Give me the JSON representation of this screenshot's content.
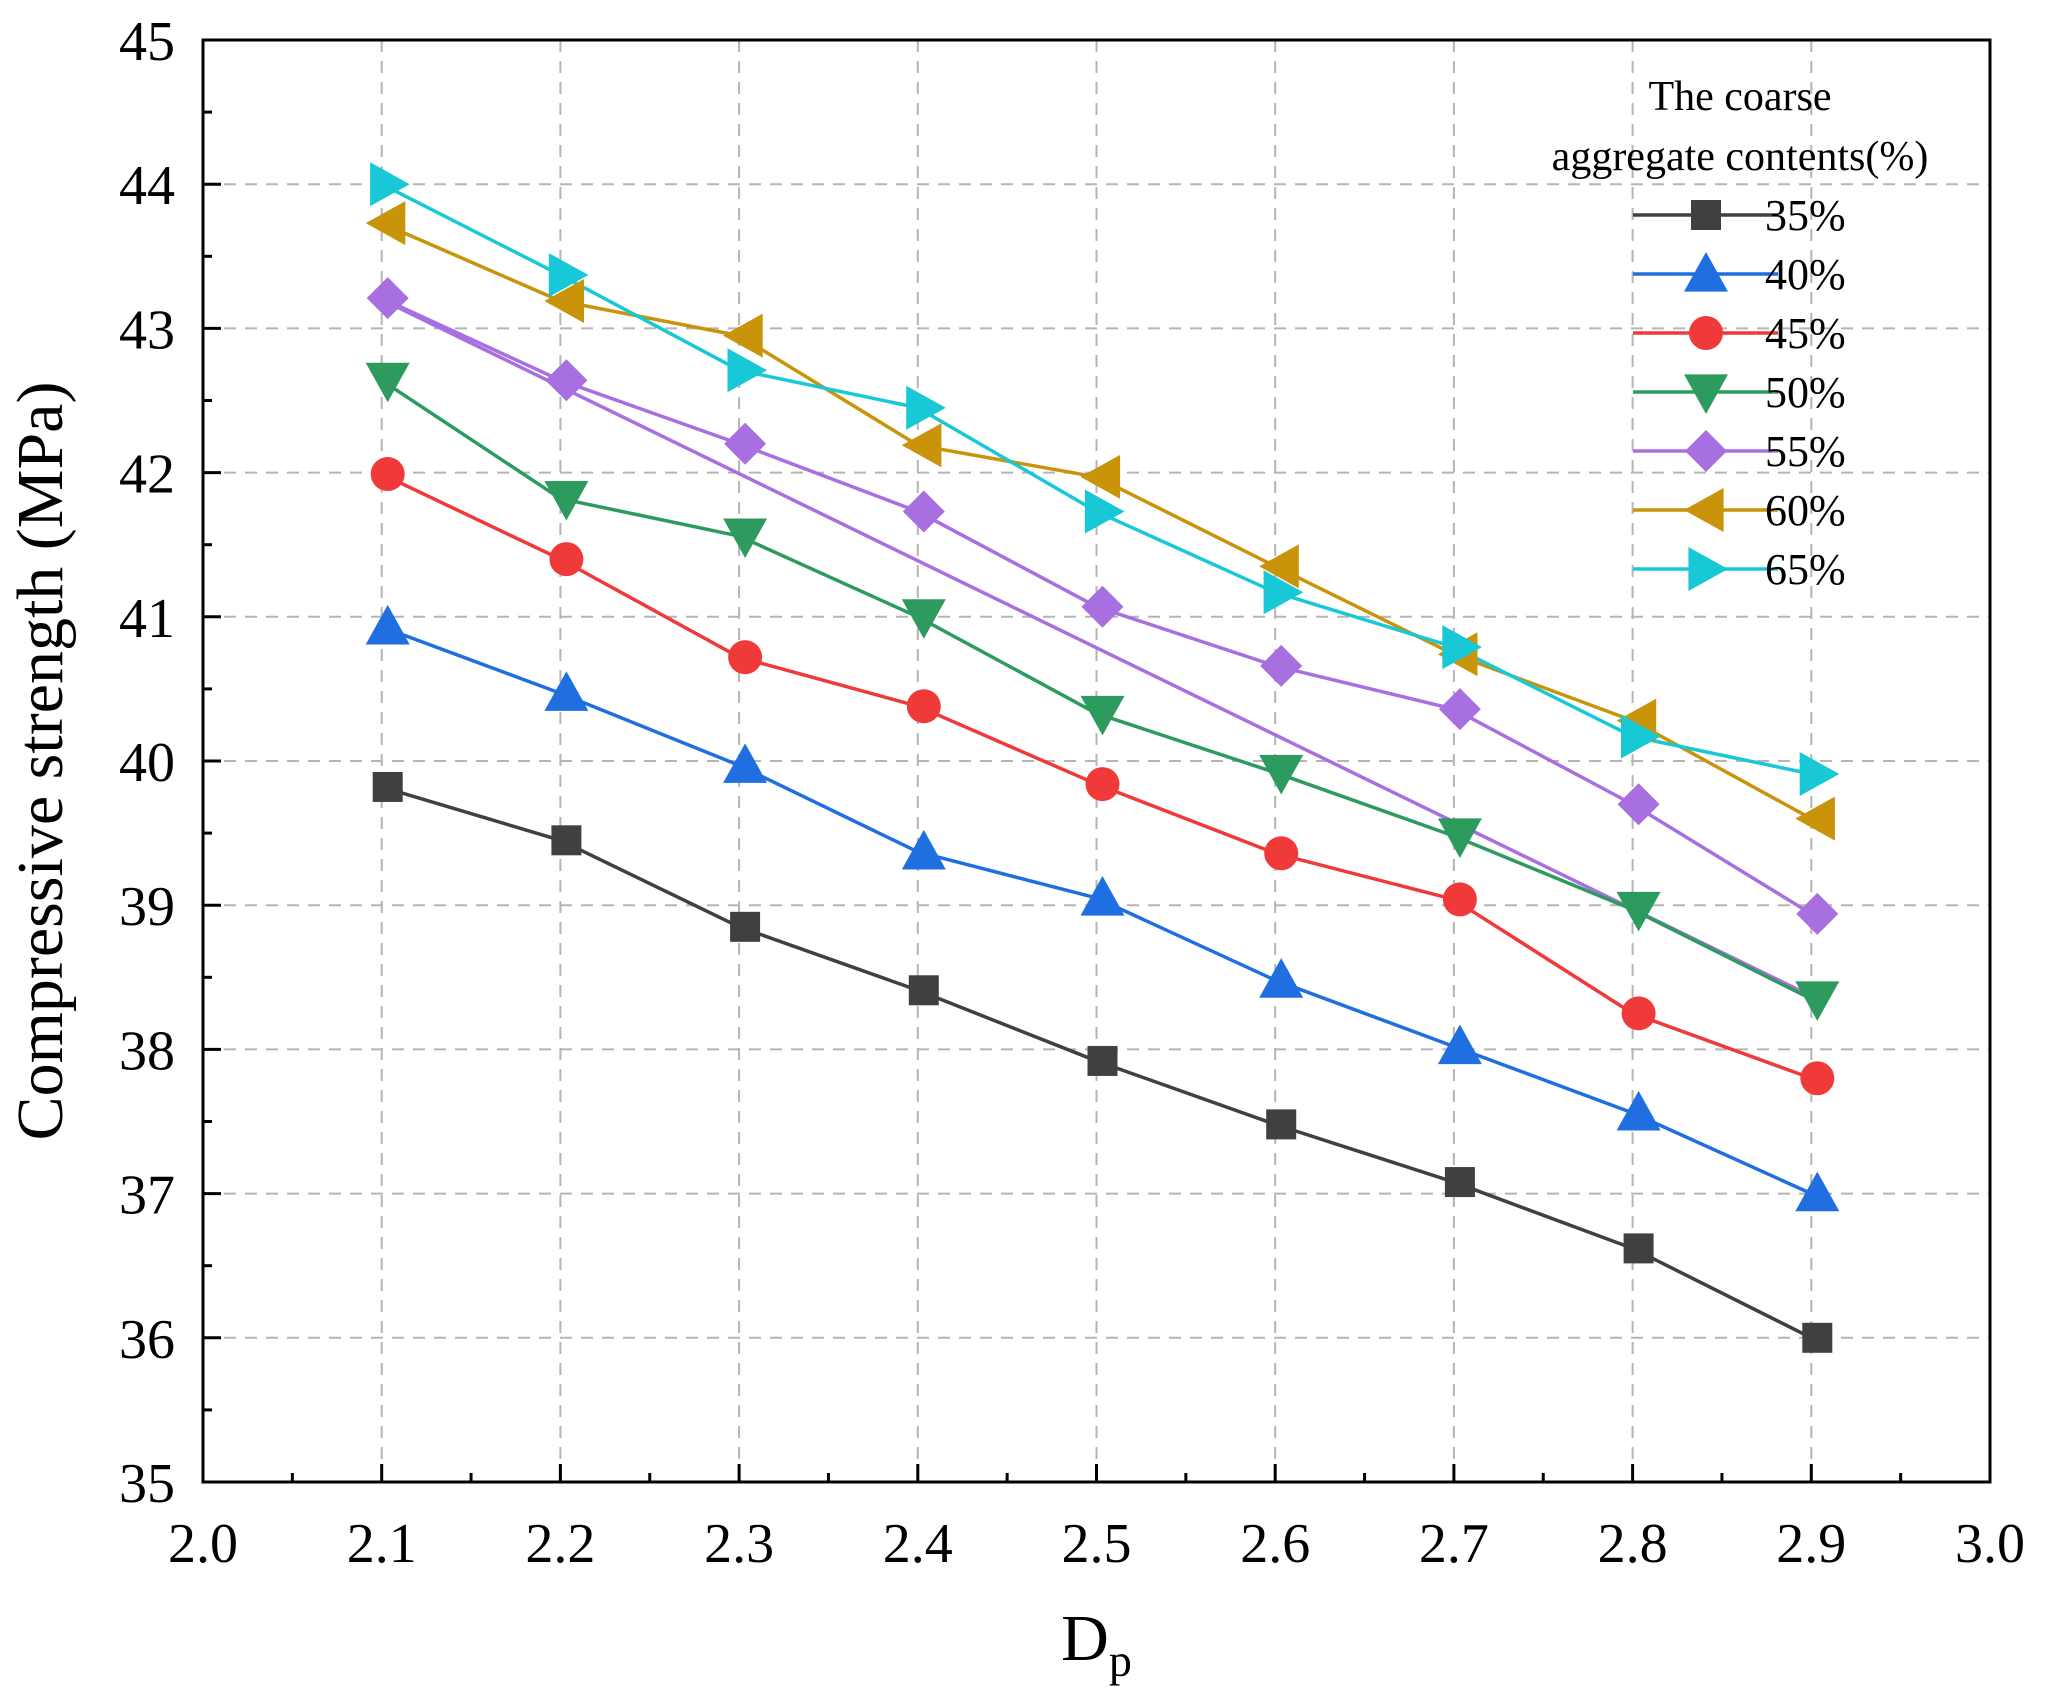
{
  "chart_data": {
    "type": "line",
    "xlabel": "D",
    "xlabel_subscript": "p",
    "ylabel": "Compressive strength (MPa)",
    "xlim": [
      2.0,
      3.0
    ],
    "ylim": [
      35,
      45
    ],
    "x_ticks": [
      "2.0",
      "2.1",
      "2.2",
      "2.3",
      "2.4",
      "2.5",
      "2.6",
      "2.7",
      "2.8",
      "2.9",
      "3.0"
    ],
    "y_ticks": [
      "35",
      "36",
      "37",
      "38",
      "39",
      "40",
      "41",
      "42",
      "43",
      "44",
      "45"
    ],
    "grid": true,
    "legend_position": "top-right",
    "legend_title_lines": [
      "The coarse",
      "aggregate contents(%)"
    ],
    "x": [
      2.1,
      2.2,
      2.3,
      2.4,
      2.5,
      2.6,
      2.7,
      2.8,
      2.9
    ],
    "series": [
      {
        "name": "35%",
        "color": "#404040",
        "marker": "square",
        "values": [
          39.82,
          39.45,
          38.85,
          38.41,
          37.92,
          37.48,
          37.08,
          36.62,
          36.0
        ]
      },
      {
        "name": "40%",
        "color": "#1f6fe0",
        "marker": "triangle-up",
        "values": [
          40.93,
          40.47,
          39.97,
          39.37,
          39.05,
          38.48,
          38.02,
          37.56,
          37.0
        ]
      },
      {
        "name": "45%",
        "color": "#f03a3a",
        "marker": "circle",
        "values": [
          41.99,
          41.4,
          40.72,
          40.38,
          39.84,
          39.36,
          39.04,
          38.25,
          37.8
        ]
      },
      {
        "name": "50%",
        "color": "#2e9b5e",
        "marker": "triangle-down",
        "values": [
          42.64,
          41.82,
          41.56,
          41.0,
          40.33,
          39.92,
          39.48,
          38.97,
          38.35
        ]
      },
      {
        "name": "55%",
        "color": "#a86fe0",
        "marker": "diamond",
        "values": [
          43.21,
          42.64,
          42.2,
          41.73,
          41.07,
          40.66,
          40.36,
          39.7,
          38.94
        ]
      },
      {
        "name": "60%",
        "color": "#c9930a",
        "marker": "triangle-left",
        "values": [
          43.73,
          43.19,
          42.95,
          42.19,
          41.97,
          41.35,
          40.74,
          40.28,
          39.6
        ]
      },
      {
        "name": "65%",
        "color": "#18c8d6",
        "marker": "triangle-right",
        "values": [
          44.0,
          43.37,
          42.71,
          42.45,
          41.73,
          41.17,
          40.79,
          40.17,
          39.91
        ]
      }
    ],
    "extra_lines": [
      {
        "name": "55% fitted trend",
        "color": "#a86fe0",
        "x": [
          2.1,
          2.9
        ],
        "values": [
          43.2,
          38.37
        ]
      }
    ]
  }
}
